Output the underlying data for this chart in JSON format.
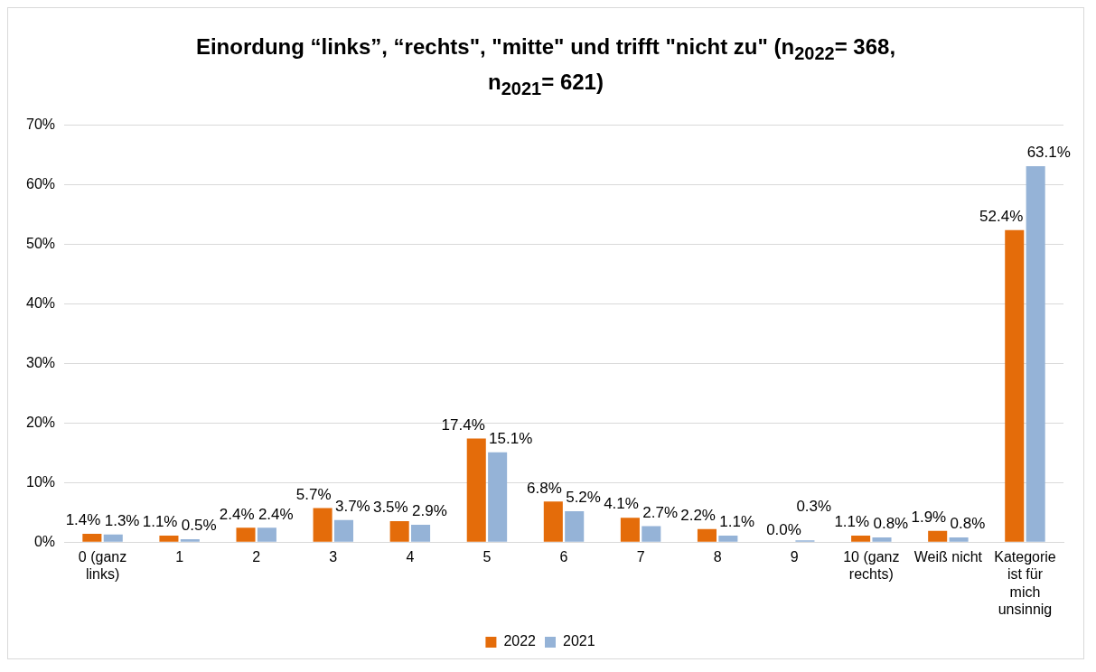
{
  "chart_data": {
    "type": "bar",
    "title": "Einordung “links”, “rechts\", \"mitte\" und trifft \"nicht zu\" (n$_{2022}$= 368, n$_{2021}$= 621)",
    "categories": [
      "0 (ganz links)",
      "1",
      "2",
      "3",
      "4",
      "5",
      "6",
      "7",
      "8",
      "9",
      "10 (ganz rechts)",
      "Weiß nicht",
      "Kategorie ist für mich unsinnig"
    ],
    "series": [
      {
        "name": "2022",
        "color": "#e46c0a",
        "values": [
          1.4,
          1.1,
          2.4,
          5.7,
          3.5,
          17.4,
          6.8,
          4.1,
          2.2,
          0.0,
          1.1,
          1.9,
          52.4
        ],
        "value_labels": [
          "1.4%",
          "1.1%",
          "2.4%",
          "5.7%",
          "3.5%",
          "17.4%",
          "6.8%",
          "4.1%",
          "2.2%",
          "0.0%",
          "1.1%",
          "1.9%",
          "52.4%"
        ]
      },
      {
        "name": "2021",
        "color": "#95b3d7",
        "values": [
          1.3,
          0.5,
          2.4,
          3.7,
          2.9,
          15.1,
          5.2,
          2.7,
          1.1,
          0.3,
          0.8,
          0.8,
          63.1
        ],
        "value_labels": [
          "1.3%",
          "0.5%",
          "2.4%",
          "3.7%",
          "2.9%",
          "15.1%",
          "5.2%",
          "2.7%",
          "1.1%",
          "0.3%",
          "0.8%",
          "0.8%",
          "63.1%"
        ]
      }
    ],
    "ylim": [
      0,
      70
    ],
    "yticks": [
      {
        "value": 0,
        "label": "0%"
      },
      {
        "value": 10,
        "label": "10%"
      },
      {
        "value": 20,
        "label": "20%"
      },
      {
        "value": 30,
        "label": "30%"
      },
      {
        "value": 40,
        "label": "40%"
      },
      {
        "value": 50,
        "label": "50%"
      },
      {
        "value": 60,
        "label": "60%"
      },
      {
        "value": 70,
        "label": "70%"
      }
    ],
    "grid": "y",
    "legend": "bottom"
  }
}
